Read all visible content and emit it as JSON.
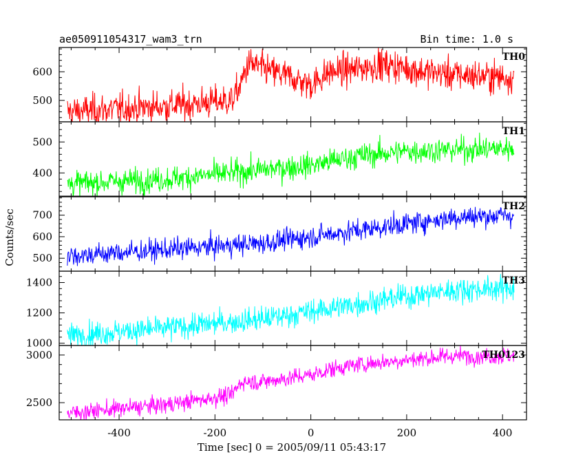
{
  "header": {
    "left": "ae050911054317_wam3_trn",
    "right": "Bin time: 1.0 s"
  },
  "chart_data": {
    "type": "line",
    "title": "ae050911054317_wam3_trn",
    "subtitle": "Bin time: 1.0 s",
    "xlabel": "Time [sec] 0 = 2005/09/11 05:43:17",
    "ylabel": "Counts/sec",
    "xlim": [
      -525,
      450
    ],
    "x_ticks": [
      -400,
      -200,
      0,
      200,
      400
    ],
    "bin_time_s": 1.0,
    "x_range_data": [
      -508,
      424
    ],
    "panels": [
      {
        "name": "TH0",
        "color": "#ff0000",
        "ylim": [
          425,
          685
        ],
        "yticks": [
          500,
          600
        ],
        "trend_x": [
          -508,
          -300,
          -165,
          -150,
          -130,
          -80,
          -40,
          -10,
          0,
          40,
          100,
          140,
          175,
          240,
          300,
          424
        ],
        "trend_y": [
          460,
          480,
          500,
          540,
          630,
          600,
          580,
          560,
          555,
          600,
          610,
          625,
          620,
          600,
          590,
          580
        ],
        "noise": 28
      },
      {
        "name": "TH1",
        "color": "#00ff00",
        "ylim": [
          325,
          565
        ],
        "yticks": [
          400,
          500
        ],
        "trend_x": [
          -508,
          -300,
          -100,
          0,
          100,
          200,
          424
        ],
        "trend_y": [
          365,
          380,
          410,
          425,
          455,
          470,
          480
        ],
        "noise": 20
      },
      {
        "name": "TH2",
        "color": "#0000ff",
        "ylim": [
          440,
          785
        ],
        "yticks": [
          500,
          600,
          700
        ],
        "trend_x": [
          -508,
          -300,
          -100,
          0,
          100,
          200,
          300,
          424
        ],
        "trend_y": [
          510,
          540,
          570,
          600,
          630,
          660,
          690,
          700
        ],
        "noise": 25
      },
      {
        "name": "TH3",
        "color": "#00ffff",
        "ylim": [
          985,
          1475
        ],
        "yticks": [
          1000,
          1200,
          1400
        ],
        "trend_x": [
          -508,
          -300,
          -100,
          0,
          100,
          200,
          300,
          424
        ],
        "trend_y": [
          1050,
          1100,
          1160,
          1210,
          1260,
          1310,
          1350,
          1365
        ],
        "noise": 40
      },
      {
        "name": "TH0123",
        "color": "#ff00ff",
        "ylim": [
          2320,
          3100
        ],
        "yticks": [
          2500,
          3000
        ],
        "trend_x": [
          -508,
          -300,
          -165,
          -145,
          -100,
          0,
          50,
          100,
          200,
          300,
          424
        ],
        "trend_y": [
          2390,
          2480,
          2580,
          2720,
          2720,
          2790,
          2860,
          2900,
          2950,
          2990,
          2990
        ],
        "noise": 45
      }
    ]
  }
}
